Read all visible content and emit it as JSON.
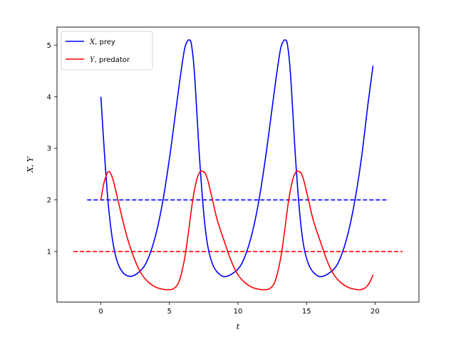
{
  "chart_data": {
    "type": "line",
    "xlabel": "t",
    "ylabel": "X, Y",
    "xlim": [
      -3.2,
      23.2
    ],
    "ylim": [
      0.02,
      5.35
    ],
    "xticks": [
      0,
      5,
      10,
      15,
      20
    ],
    "yticks": [
      1,
      2,
      3,
      4,
      5
    ],
    "grid": false,
    "legend_placement": "top-left",
    "series": [
      {
        "name_parts": [
          "X",
          ", prey"
        ],
        "color": "#0000ff",
        "style": "solid",
        "x": [
          0,
          0.3,
          0.6,
          1.0,
          1.5,
          2.2,
          3.0,
          3.5,
          4.0,
          4.5,
          5.0,
          5.5,
          5.8,
          6.1,
          6.3,
          6.45,
          6.6,
          6.8,
          7.0,
          7.2,
          7.5,
          7.8,
          8.2,
          8.7,
          9.2,
          10.0,
          10.5,
          11.0,
          11.5,
          12.0,
          12.5,
          12.8,
          13.1,
          13.3,
          13.45,
          13.6,
          13.8,
          14.0,
          14.2,
          14.5,
          14.8,
          15.2,
          15.7,
          16.2,
          17.0,
          17.5,
          18.0,
          18.5,
          19.0,
          19.5,
          19.85
        ],
        "y": [
          4.0,
          2.75,
          1.75,
          1.0,
          0.63,
          0.52,
          0.66,
          0.9,
          1.32,
          1.95,
          2.8,
          3.8,
          4.4,
          4.92,
          5.07,
          5.1,
          5.02,
          4.55,
          3.7,
          2.8,
          1.75,
          1.1,
          0.72,
          0.55,
          0.52,
          0.66,
          0.9,
          1.32,
          1.95,
          2.8,
          3.8,
          4.4,
          4.92,
          5.07,
          5.1,
          5.02,
          4.55,
          3.7,
          2.8,
          1.75,
          1.1,
          0.72,
          0.55,
          0.52,
          0.66,
          0.9,
          1.32,
          1.95,
          2.8,
          3.9,
          4.6
        ]
      },
      {
        "name_parts": [
          "Y",
          ", predator"
        ],
        "color": "#ff0000",
        "style": "solid",
        "x": [
          0,
          0.2,
          0.4,
          0.55,
          0.7,
          0.9,
          1.2,
          1.6,
          2.0,
          2.5,
          3.0,
          3.5,
          4.0,
          4.5,
          4.9,
          5.3,
          5.7,
          6.1,
          6.4,
          6.7,
          7.0,
          7.25,
          7.45,
          7.6,
          7.8,
          8.1,
          8.5,
          9.0,
          9.5,
          10.0,
          10.5,
          11.0,
          11.5,
          11.9,
          12.3,
          12.7,
          13.1,
          13.4,
          13.7,
          14.0,
          14.25,
          14.45,
          14.6,
          14.8,
          15.1,
          15.5,
          16.0,
          16.5,
          17.0,
          17.5,
          18.0,
          18.5,
          18.9,
          19.3,
          19.6,
          19.85
        ],
        "y": [
          2.0,
          2.3,
          2.48,
          2.55,
          2.52,
          2.38,
          2.05,
          1.6,
          1.2,
          0.82,
          0.55,
          0.4,
          0.31,
          0.27,
          0.26,
          0.28,
          0.42,
          0.85,
          1.4,
          2.0,
          2.4,
          2.55,
          2.55,
          2.52,
          2.38,
          2.05,
          1.6,
          1.2,
          0.82,
          0.55,
          0.4,
          0.31,
          0.27,
          0.26,
          0.28,
          0.42,
          0.85,
          1.4,
          2.0,
          2.4,
          2.55,
          2.55,
          2.52,
          2.38,
          2.05,
          1.6,
          1.2,
          0.82,
          0.55,
          0.4,
          0.31,
          0.27,
          0.26,
          0.3,
          0.4,
          0.55
        ]
      }
    ],
    "reference_lines": [
      {
        "y": 2,
        "x_start": -1,
        "x_end": 21,
        "color": "#0000ff",
        "style": "dashed"
      },
      {
        "y": 1,
        "x_start": -2,
        "x_end": 22,
        "color": "#ff0000",
        "style": "dashed"
      }
    ]
  }
}
